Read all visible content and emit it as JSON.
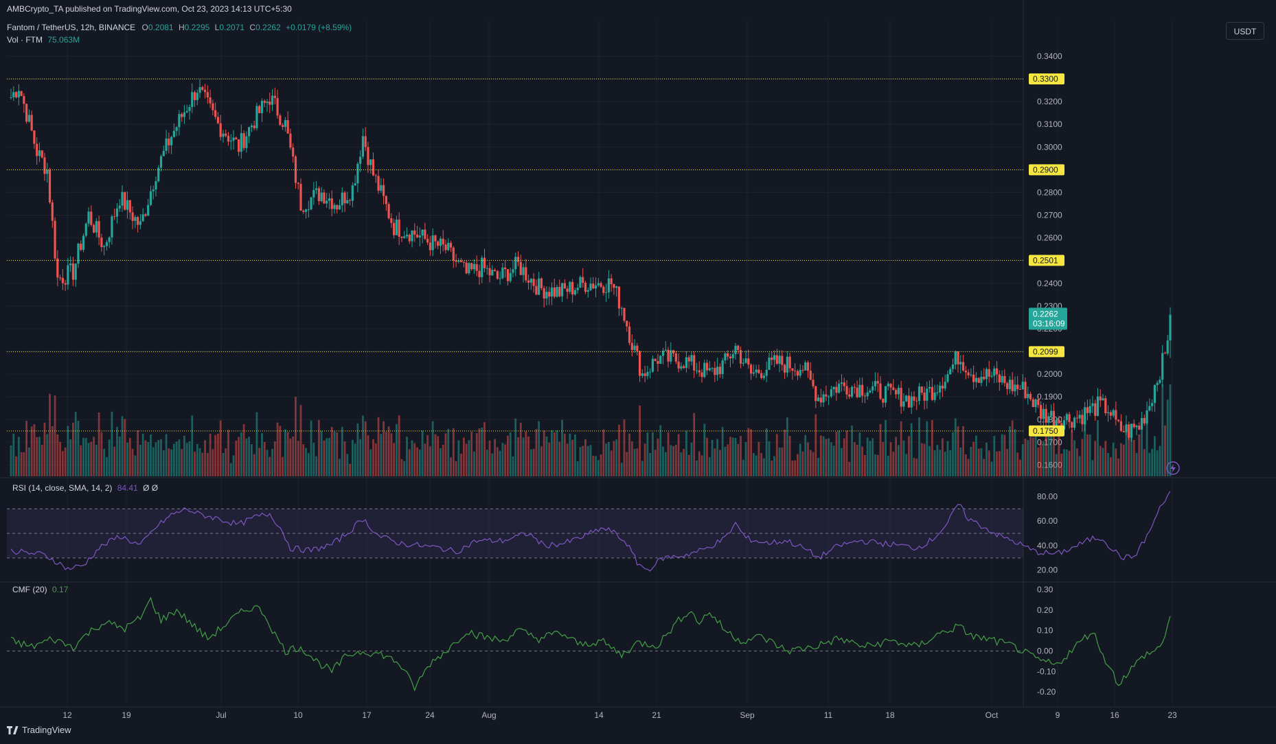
{
  "header": {
    "publisher": "AMBCrypto_TA published on TradingView.com, Oct 23, 2023 14:13 UTC+5:30",
    "symbol": "Fantom / TetherUS, 12h, BINANCE",
    "ohlc": {
      "o_label": "O",
      "o": "0.2081",
      "h_label": "H",
      "h": "0.2295",
      "l_label": "L",
      "l": "0.2071",
      "c_label": "C",
      "c": "0.2262",
      "change": "+0.0179 (+8.59%)"
    },
    "volume_label": "Vol · FTM",
    "volume_value": "75.063M",
    "currency_button": "USDT"
  },
  "colors": {
    "up": "#26a69a",
    "down": "#ef5350",
    "level": "#f5e642",
    "rsi": "#7e57c2",
    "cmf": "#43a047",
    "bg": "#141823"
  },
  "chart_data": [
    {
      "type": "candlestick",
      "pane": "price",
      "interval": "12h",
      "ylim": [
        0.155,
        0.343
      ],
      "y_ticks": [
        "0.3400",
        "0.3300",
        "0.3200",
        "0.3100",
        "0.3000",
        "0.2900",
        "0.2800",
        "0.2700",
        "0.2600",
        "0.2500",
        "0.2400",
        "0.2300",
        "0.2200",
        "0.2100",
        "0.2000",
        "0.1900",
        "0.1800",
        "0.1700",
        "0.1600"
      ],
      "x_ticks": [
        "12",
        "19",
        "Jul",
        "10",
        "17",
        "24",
        "Aug",
        "14",
        "21",
        "Sep",
        "11",
        "18",
        "Oct",
        "9",
        "16",
        "23"
      ],
      "levels": [
        {
          "value": 0.33,
          "label": "0.3300"
        },
        {
          "value": 0.29,
          "label": "0.2900"
        },
        {
          "value": 0.2501,
          "label": "0.2501"
        },
        {
          "value": 0.2099,
          "label": "0.2099"
        },
        {
          "value": 0.175,
          "label": "0.1750"
        }
      ],
      "last_price": {
        "value": 0.2262,
        "label": "0.2262",
        "countdown": "03:16:09"
      },
      "close_path": [
        [
          0,
          0.322
        ],
        [
          3,
          0.327
        ],
        [
          6,
          0.315
        ],
        [
          10,
          0.298
        ],
        [
          14,
          0.29
        ],
        [
          18,
          0.242
        ],
        [
          24,
          0.245
        ],
        [
          30,
          0.27
        ],
        [
          36,
          0.256
        ],
        [
          42,
          0.278
        ],
        [
          50,
          0.265
        ],
        [
          56,
          0.289
        ],
        [
          62,
          0.305
        ],
        [
          68,
          0.318
        ],
        [
          72,
          0.326
        ],
        [
          80,
          0.31
        ],
        [
          88,
          0.3
        ],
        [
          94,
          0.312
        ],
        [
          100,
          0.322
        ],
        [
          106,
          0.31
        ],
        [
          112,
          0.275
        ],
        [
          120,
          0.28
        ],
        [
          126,
          0.275
        ],
        [
          132,
          0.282
        ],
        [
          136,
          0.305
        ],
        [
          140,
          0.288
        ],
        [
          148,
          0.265
        ],
        [
          156,
          0.262
        ],
        [
          162,
          0.258
        ],
        [
          168,
          0.255
        ],
        [
          176,
          0.244
        ],
        [
          182,
          0.247
        ],
        [
          188,
          0.242
        ],
        [
          196,
          0.248
        ],
        [
          204,
          0.238
        ],
        [
          212,
          0.236
        ],
        [
          222,
          0.24
        ],
        [
          232,
          0.24
        ],
        [
          236,
          0.23
        ],
        [
          240,
          0.214
        ],
        [
          244,
          0.2
        ],
        [
          250,
          0.207
        ],
        [
          260,
          0.206
        ],
        [
          270,
          0.2
        ],
        [
          276,
          0.205
        ],
        [
          280,
          0.212
        ],
        [
          286,
          0.2
        ],
        [
          296,
          0.205
        ],
        [
          306,
          0.203
        ],
        [
          312,
          0.19
        ],
        [
          320,
          0.195
        ],
        [
          330,
          0.194
        ],
        [
          340,
          0.191
        ],
        [
          348,
          0.189
        ],
        [
          356,
          0.193
        ],
        [
          362,
          0.2
        ],
        [
          366,
          0.208
        ],
        [
          372,
          0.2
        ],
        [
          380,
          0.199
        ],
        [
          386,
          0.195
        ],
        [
          392,
          0.193
        ],
        [
          398,
          0.183
        ],
        [
          406,
          0.18
        ],
        [
          412,
          0.181
        ],
        [
          420,
          0.186
        ],
        [
          424,
          0.185
        ],
        [
          428,
          0.176
        ],
        [
          432,
          0.175
        ],
        [
          436,
          0.177
        ],
        [
          438,
          0.182
        ],
        [
          440,
          0.187
        ],
        [
          442,
          0.195
        ],
        [
          444,
          0.202
        ],
        [
          446,
          0.208
        ],
        [
          448,
          0.2262
        ]
      ],
      "volume": {
        "ylim": [
          0,
          100
        ],
        "series": "volume bars colored by candle direction"
      }
    },
    {
      "type": "line",
      "pane": "RSI",
      "label": "RSI (14, close, SMA, 14, 2)",
      "value": "84.41",
      "extra": "Ø Ø",
      "ylim": [
        12,
        92
      ],
      "y_ticks": [
        "80.00",
        "60.00",
        "40.00",
        "20.00"
      ],
      "bands": [
        70,
        50,
        30
      ],
      "points": [
        [
          0,
          36
        ],
        [
          6,
          34
        ],
        [
          12,
          33
        ],
        [
          16,
          29
        ],
        [
          22,
          21
        ],
        [
          28,
          24
        ],
        [
          34,
          38
        ],
        [
          42,
          48
        ],
        [
          50,
          40
        ],
        [
          56,
          55
        ],
        [
          62,
          65
        ],
        [
          68,
          70
        ],
        [
          72,
          66
        ],
        [
          80,
          62
        ],
        [
          88,
          57
        ],
        [
          94,
          63
        ],
        [
          100,
          66
        ],
        [
          104,
          55
        ],
        [
          108,
          38
        ],
        [
          116,
          36
        ],
        [
          124,
          41
        ],
        [
          130,
          50
        ],
        [
          136,
          62
        ],
        [
          142,
          48
        ],
        [
          150,
          42
        ],
        [
          158,
          40
        ],
        [
          166,
          38
        ],
        [
          172,
          35
        ],
        [
          180,
          44
        ],
        [
          190,
          44
        ],
        [
          200,
          50
        ],
        [
          206,
          40
        ],
        [
          214,
          42
        ],
        [
          222,
          48
        ],
        [
          228,
          54
        ],
        [
          232,
          52
        ],
        [
          238,
          42
        ],
        [
          242,
          26
        ],
        [
          246,
          20
        ],
        [
          252,
          30
        ],
        [
          260,
          32
        ],
        [
          268,
          37
        ],
        [
          276,
          46
        ],
        [
          280,
          58
        ],
        [
          284,
          46
        ],
        [
          292,
          42
        ],
        [
          300,
          44
        ],
        [
          308,
          36
        ],
        [
          312,
          30
        ],
        [
          320,
          40
        ],
        [
          328,
          44
        ],
        [
          336,
          42
        ],
        [
          344,
          40
        ],
        [
          350,
          38
        ],
        [
          356,
          45
        ],
        [
          362,
          58
        ],
        [
          366,
          74
        ],
        [
          370,
          62
        ],
        [
          376,
          55
        ],
        [
          382,
          48
        ],
        [
          388,
          43
        ],
        [
          396,
          35
        ],
        [
          404,
          33
        ],
        [
          410,
          38
        ],
        [
          418,
          46
        ],
        [
          422,
          46
        ],
        [
          426,
          36
        ],
        [
          430,
          30
        ],
        [
          434,
          31
        ],
        [
          438,
          44
        ],
        [
          442,
          60
        ],
        [
          444,
          72
        ],
        [
          446,
          76
        ],
        [
          448,
          84.41
        ]
      ]
    },
    {
      "type": "line",
      "pane": "CMF",
      "label": "CMF (20)",
      "value": "0.17",
      "ylim": [
        -0.26,
        0.33
      ],
      "y_ticks": [
        "0.30",
        "0.20",
        "0.10",
        "0.00",
        "-0.10",
        "-0.20"
      ],
      "zero_line": 0,
      "points": [
        [
          0,
          0.05
        ],
        [
          8,
          0.02
        ],
        [
          16,
          0.06
        ],
        [
          24,
          0.02
        ],
        [
          30,
          0.09
        ],
        [
          36,
          0.14
        ],
        [
          44,
          0.11
        ],
        [
          50,
          0.16
        ],
        [
          54,
          0.25
        ],
        [
          58,
          0.15
        ],
        [
          64,
          0.2
        ],
        [
          70,
          0.13
        ],
        [
          76,
          0.06
        ],
        [
          82,
          0.12
        ],
        [
          88,
          0.18
        ],
        [
          94,
          0.22
        ],
        [
          98,
          0.18
        ],
        [
          102,
          0.08
        ],
        [
          106,
          0.0
        ],
        [
          112,
          0.02
        ],
        [
          118,
          -0.05
        ],
        [
          124,
          -0.1
        ],
        [
          130,
          -0.02
        ],
        [
          136,
          0.0
        ],
        [
          144,
          -0.02
        ],
        [
          150,
          -0.06
        ],
        [
          156,
          -0.18
        ],
        [
          162,
          -0.06
        ],
        [
          170,
          0.02
        ],
        [
          176,
          0.1
        ],
        [
          182,
          0.07
        ],
        [
          190,
          0.05
        ],
        [
          196,
          0.1
        ],
        [
          204,
          0.06
        ],
        [
          212,
          0.09
        ],
        [
          220,
          0.03
        ],
        [
          228,
          0.05
        ],
        [
          236,
          -0.02
        ],
        [
          242,
          0.04
        ],
        [
          250,
          0.03
        ],
        [
          256,
          0.12
        ],
        [
          262,
          0.2
        ],
        [
          266,
          0.14
        ],
        [
          270,
          0.19
        ],
        [
          276,
          0.1
        ],
        [
          282,
          0.05
        ],
        [
          290,
          0.07
        ],
        [
          300,
          0.0
        ],
        [
          310,
          0.02
        ],
        [
          320,
          0.06
        ],
        [
          330,
          0.02
        ],
        [
          340,
          0.05
        ],
        [
          350,
          0.02
        ],
        [
          358,
          0.08
        ],
        [
          366,
          0.12
        ],
        [
          372,
          0.07
        ],
        [
          380,
          0.05
        ],
        [
          388,
          0.02
        ],
        [
          396,
          -0.04
        ],
        [
          404,
          -0.07
        ],
        [
          412,
          0.03
        ],
        [
          418,
          0.1
        ],
        [
          422,
          -0.02
        ],
        [
          428,
          -0.16
        ],
        [
          432,
          -0.1
        ],
        [
          438,
          -0.02
        ],
        [
          442,
          0.0
        ],
        [
          444,
          0.02
        ],
        [
          446,
          0.08
        ],
        [
          448,
          0.17
        ]
      ]
    }
  ],
  "footer": {
    "brand": "TradingView"
  }
}
